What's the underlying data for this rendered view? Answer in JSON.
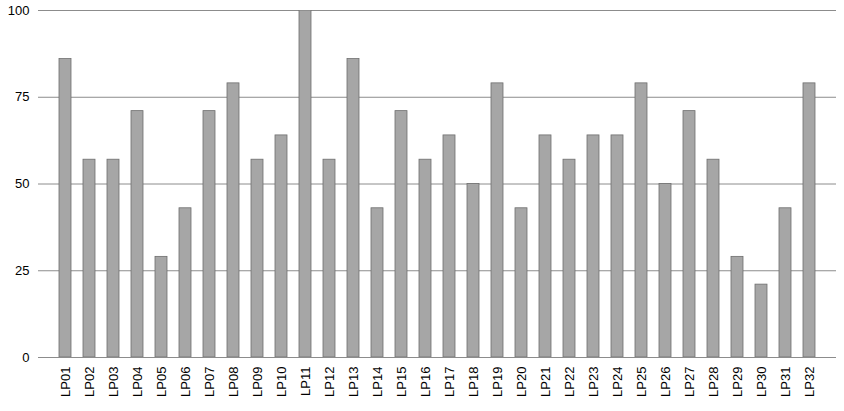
{
  "chart_data": {
    "type": "bar",
    "categories": [
      "LP01",
      "LP02",
      "LP03",
      "LP04",
      "LP05",
      "LP06",
      "LP07",
      "LP08",
      "LP09",
      "LP10",
      "LP11",
      "LP12",
      "LP13",
      "LP14",
      "LP15",
      "LP16",
      "LP17",
      "LP18",
      "LP19",
      "LP20",
      "LP21",
      "LP22",
      "LP23",
      "LP24",
      "LP25",
      "LP26",
      "LP27",
      "LP28",
      "LP29",
      "LP30",
      "LP31",
      "LP32"
    ],
    "values": [
      86,
      57,
      57,
      71,
      29,
      43,
      71,
      79,
      57,
      64,
      100,
      57,
      86,
      43,
      71,
      57,
      64,
      50,
      79,
      43,
      64,
      57,
      64,
      64,
      79,
      50,
      71,
      57,
      29,
      21,
      43,
      79
    ],
    "color": "#a6a6a6",
    "ylim": [
      0,
      100
    ],
    "yticks": [
      0,
      25,
      50,
      75,
      100
    ],
    "grid": true
  }
}
